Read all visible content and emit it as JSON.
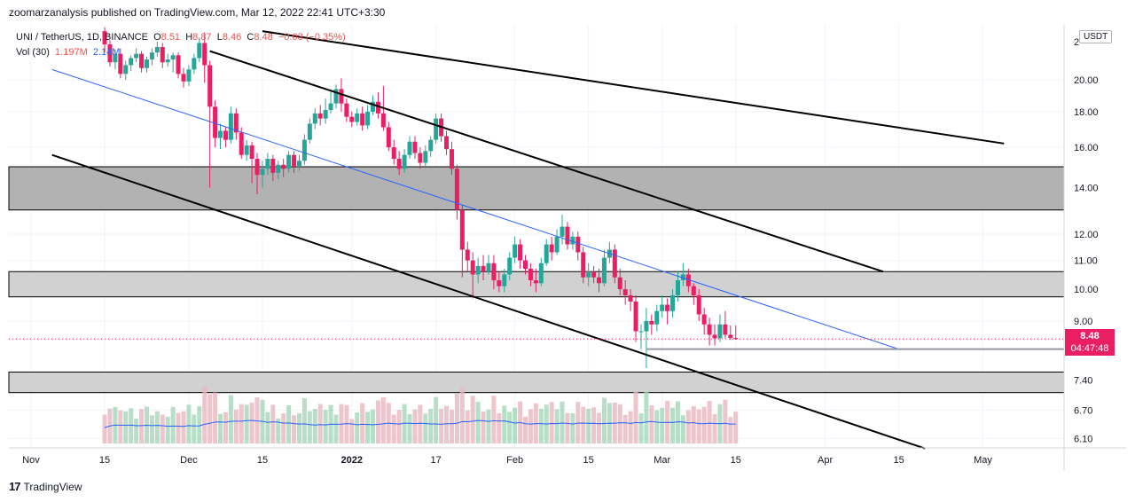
{
  "header": {
    "publisher_line": "zoomarzanalysis published on TradingView.com, Mar 12, 2022 22:41 UTC+3:30"
  },
  "legend": {
    "symbol": "UNI / TetherUS, 1D, BINANCE",
    "open_label": "O",
    "open": "8.51",
    "high_label": "H",
    "high": "8.87",
    "low_label": "L",
    "low": "8.46",
    "close_label": "C",
    "close": "8.48",
    "change": "−0.03 (−0.35%)",
    "vol_label": "Vol (30)",
    "vol_value": "1.197M",
    "vol_ma": "2.14M"
  },
  "currency": "USDT",
  "last_price": {
    "price": "8.48",
    "countdown": "04:47:48",
    "color": "#e91e63"
  },
  "footer": {
    "logo_text": "TradingView"
  },
  "chart_data": {
    "type": "candlestick",
    "symbol": "UNI/USDT",
    "interval": "1D",
    "scale": "log",
    "price_axis_ticks": [
      6.1,
      6.7,
      7.4,
      9.0,
      10.0,
      11.0,
      12.0,
      14.0,
      16.0,
      18.0,
      20.0
    ],
    "price_axis_top_label": "2",
    "time_axis_labels": [
      "Nov",
      "15",
      "Dec",
      "15",
      "2022",
      "17",
      "Feb",
      "15",
      "Mar",
      "15",
      "Apr",
      "15",
      "May"
    ],
    "time_axis_dates": [
      "2021-11-01",
      "2021-11-15",
      "2021-12-01",
      "2021-12-15",
      "2022-01-01",
      "2022-01-17",
      "2022-02-01",
      "2022-02-15",
      "2022-03-01",
      "2022-03-15",
      "2022-04-01",
      "2022-04-15",
      "2022-05-01"
    ],
    "candles": [
      [
        "2021-11-15",
        23.5,
        22.5,
        23.8,
        21.9
      ],
      [
        "2021-11-16",
        22.5,
        21.2,
        22.8,
        20.9
      ],
      [
        "2021-11-17",
        21.2,
        21.8,
        22.1,
        20.7
      ],
      [
        "2021-11-18",
        21.8,
        20.4,
        22.2,
        20.1
      ],
      [
        "2021-11-19",
        20.4,
        21.0,
        21.3,
        20.0
      ],
      [
        "2021-11-20",
        21.0,
        21.5,
        21.7,
        20.6
      ],
      [
        "2021-11-21",
        21.5,
        21.8,
        22.2,
        21.2
      ],
      [
        "2021-11-22",
        21.8,
        20.8,
        22.0,
        20.5
      ],
      [
        "2021-11-23",
        20.8,
        21.4,
        21.6,
        20.5
      ],
      [
        "2021-11-24",
        21.4,
        21.9,
        22.2,
        21.0
      ],
      [
        "2021-11-25",
        21.9,
        22.3,
        22.7,
        21.6
      ],
      [
        "2021-11-26",
        22.3,
        21.2,
        22.6,
        20.8
      ],
      [
        "2021-11-27",
        21.2,
        21.4,
        21.8,
        20.9
      ],
      [
        "2021-11-28",
        21.4,
        21.7,
        21.9,
        20.5
      ],
      [
        "2021-11-29",
        21.7,
        20.4,
        21.9,
        20.1
      ],
      [
        "2021-11-30",
        20.4,
        19.9,
        20.8,
        19.5
      ],
      [
        "2021-12-01",
        19.9,
        20.7,
        21.0,
        19.6
      ],
      [
        "2021-12-02",
        20.7,
        21.5,
        21.8,
        20.4
      ],
      [
        "2021-12-03",
        21.5,
        22.6,
        23.0,
        21.2
      ],
      [
        "2021-12-04",
        22.6,
        21.0,
        23.4,
        19.8
      ],
      [
        "2021-12-05",
        21.0,
        18.3,
        21.3,
        14.0
      ],
      [
        "2021-12-06",
        18.3,
        16.5,
        18.7,
        16.0
      ],
      [
        "2021-12-07",
        16.5,
        16.9,
        17.3,
        15.9
      ],
      [
        "2021-12-08",
        16.9,
        16.4,
        17.1,
        16.0
      ],
      [
        "2021-12-09",
        16.4,
        17.9,
        18.3,
        16.2
      ],
      [
        "2021-12-10",
        17.9,
        16.8,
        18.2,
        16.4
      ],
      [
        "2021-12-11",
        16.8,
        15.6,
        17.1,
        15.4
      ],
      [
        "2021-12-12",
        15.6,
        16.1,
        16.4,
        15.3
      ],
      [
        "2021-12-13",
        16.1,
        15.4,
        16.3,
        14.2
      ],
      [
        "2021-12-14",
        15.4,
        14.6,
        15.7,
        13.7
      ],
      [
        "2021-12-15",
        14.6,
        14.9,
        15.3,
        14.0
      ],
      [
        "2021-12-16",
        14.9,
        15.4,
        15.7,
        14.6
      ],
      [
        "2021-12-17",
        15.4,
        14.7,
        15.6,
        14.3
      ],
      [
        "2021-12-18",
        14.7,
        15.1,
        15.3,
        14.4
      ],
      [
        "2021-12-19",
        15.1,
        14.9,
        15.4,
        14.5
      ],
      [
        "2021-12-20",
        14.9,
        15.6,
        15.8,
        14.7
      ],
      [
        "2021-12-21",
        15.6,
        15.0,
        15.8,
        14.7
      ],
      [
        "2021-12-22",
        15.0,
        15.3,
        15.6,
        14.8
      ],
      [
        "2021-12-23",
        15.3,
        16.4,
        16.7,
        15.1
      ],
      [
        "2021-12-24",
        16.4,
        17.3,
        17.6,
        16.2
      ],
      [
        "2021-12-25",
        17.3,
        17.9,
        18.2,
        17.0
      ],
      [
        "2021-12-26",
        17.9,
        17.6,
        18.4,
        17.2
      ],
      [
        "2021-12-27",
        17.6,
        18.1,
        18.8,
        17.3
      ],
      [
        "2021-12-28",
        18.1,
        18.5,
        19.4,
        17.9
      ],
      [
        "2021-12-29",
        18.5,
        19.4,
        19.7,
        18.2
      ],
      [
        "2021-12-30",
        19.4,
        18.5,
        20.1,
        18.0
      ],
      [
        "2021-12-31",
        18.5,
        17.7,
        18.8,
        17.4
      ],
      [
        "2022-01-01",
        17.7,
        17.4,
        18.0,
        17.1
      ],
      [
        "2022-01-02",
        17.4,
        17.9,
        18.2,
        17.2
      ],
      [
        "2022-01-03",
        17.9,
        17.2,
        18.3,
        16.9
      ],
      [
        "2022-01-04",
        17.2,
        18.0,
        18.4,
        17.0
      ],
      [
        "2022-01-05",
        18.0,
        18.6,
        19.0,
        17.8
      ],
      [
        "2022-01-06",
        18.6,
        17.9,
        19.2,
        17.6
      ],
      [
        "2022-01-07",
        17.9,
        17.1,
        19.6,
        16.9
      ],
      [
        "2022-01-08",
        17.1,
        16.0,
        17.4,
        15.8
      ],
      [
        "2022-01-09",
        16.0,
        15.4,
        16.4,
        15.1
      ],
      [
        "2022-01-10",
        15.4,
        14.9,
        15.8,
        14.6
      ],
      [
        "2022-01-11",
        14.9,
        15.6,
        15.9,
        14.7
      ],
      [
        "2022-01-12",
        15.6,
        16.3,
        16.6,
        15.4
      ],
      [
        "2022-01-13",
        16.3,
        15.7,
        16.6,
        15.4
      ],
      [
        "2022-01-14",
        15.7,
        15.2,
        16.0,
        14.9
      ],
      [
        "2022-01-15",
        15.2,
        15.8,
        16.1,
        15.0
      ],
      [
        "2022-01-16",
        15.8,
        16.4,
        16.6,
        15.5
      ],
      [
        "2022-01-17",
        16.4,
        17.6,
        17.9,
        16.2
      ],
      [
        "2022-01-18",
        17.6,
        16.6,
        17.9,
        16.3
      ],
      [
        "2022-01-19",
        16.6,
        15.9,
        16.9,
        15.6
      ],
      [
        "2022-01-20",
        15.9,
        14.9,
        16.3,
        14.6
      ],
      [
        "2022-01-21",
        14.9,
        13.0,
        15.1,
        12.6
      ],
      [
        "2022-01-22",
        13.0,
        11.4,
        13.2,
        10.4
      ],
      [
        "2022-01-23",
        11.4,
        11.0,
        11.7,
        10.6
      ],
      [
        "2022-01-24",
        11.0,
        10.5,
        11.3,
        9.7
      ],
      [
        "2022-01-25",
        10.5,
        10.8,
        11.1,
        10.2
      ],
      [
        "2022-01-26",
        10.8,
        10.6,
        11.2,
        10.3
      ],
      [
        "2022-01-27",
        10.6,
        10.9,
        11.2,
        10.5
      ],
      [
        "2022-01-28",
        10.9,
        10.3,
        11.2,
        10.0
      ],
      [
        "2022-01-29",
        10.3,
        10.1,
        10.6,
        9.9
      ],
      [
        "2022-01-30",
        10.1,
        10.5,
        10.7,
        9.9
      ],
      [
        "2022-01-31",
        10.5,
        11.1,
        11.3,
        10.3
      ],
      [
        "2022-02-01",
        11.1,
        11.6,
        11.9,
        10.9
      ],
      [
        "2022-02-02",
        11.6,
        11.0,
        11.8,
        10.7
      ],
      [
        "2022-02-03",
        11.0,
        10.7,
        11.2,
        10.5
      ],
      [
        "2022-02-04",
        10.7,
        10.3,
        10.9,
        10.1
      ],
      [
        "2022-02-05",
        10.3,
        10.2,
        10.7,
        9.9
      ],
      [
        "2022-02-06",
        10.2,
        10.9,
        11.1,
        10.1
      ],
      [
        "2022-02-07",
        10.9,
        11.6,
        11.8,
        10.8
      ],
      [
        "2022-02-08",
        11.6,
        11.3,
        11.9,
        11.0
      ],
      [
        "2022-02-09",
        11.3,
        11.9,
        12.2,
        11.2
      ],
      [
        "2022-02-10",
        11.9,
        12.3,
        12.8,
        11.6
      ],
      [
        "2022-02-11",
        12.3,
        11.6,
        12.5,
        11.4
      ],
      [
        "2022-02-12",
        11.6,
        11.9,
        12.1,
        11.4
      ],
      [
        "2022-02-13",
        11.9,
        11.3,
        12.1,
        11.0
      ],
      [
        "2022-02-14",
        11.3,
        10.4,
        11.5,
        10.2
      ],
      [
        "2022-02-15",
        10.4,
        10.6,
        10.9,
        10.1
      ],
      [
        "2022-02-16",
        10.6,
        10.4,
        10.8,
        10.2
      ],
      [
        "2022-02-17",
        10.4,
        10.2,
        10.7,
        9.9
      ],
      [
        "2022-02-18",
        10.2,
        11.1,
        11.4,
        10.1
      ],
      [
        "2022-02-19",
        11.1,
        11.4,
        11.7,
        10.9
      ],
      [
        "2022-02-20",
        11.4,
        10.4,
        11.6,
        10.2
      ],
      [
        "2022-02-21",
        10.4,
        10.0,
        10.7,
        9.8
      ],
      [
        "2022-02-22",
        10.0,
        9.8,
        10.3,
        9.5
      ],
      [
        "2022-02-23",
        9.8,
        9.6,
        10.0,
        9.3
      ],
      [
        "2022-02-24",
        9.6,
        8.7,
        9.8,
        8.4
      ],
      [
        "2022-02-25",
        8.7,
        8.7,
        8.9,
        8.2
      ],
      [
        "2022-02-26",
        8.7,
        9.0,
        9.4,
        7.7
      ],
      [
        "2022-02-27",
        9.0,
        8.9,
        9.2,
        8.6
      ],
      [
        "2022-02-28",
        8.9,
        9.3,
        9.5,
        8.7
      ],
      [
        "2022-03-01",
        9.3,
        9.5,
        9.8,
        9.1
      ],
      [
        "2022-03-02",
        9.5,
        9.3,
        9.7,
        8.9
      ],
      [
        "2022-03-03",
        9.3,
        9.8,
        10.0,
        9.1
      ],
      [
        "2022-03-04",
        9.8,
        10.3,
        10.6,
        9.6
      ],
      [
        "2022-03-05",
        10.3,
        10.5,
        10.9,
        10.1
      ],
      [
        "2022-03-06",
        10.5,
        10.1,
        10.7,
        9.9
      ],
      [
        "2022-03-07",
        10.1,
        9.8,
        10.2,
        9.5
      ],
      [
        "2022-03-08",
        9.8,
        9.2,
        10.0,
        9.0
      ],
      [
        "2022-03-09",
        9.2,
        8.9,
        9.4,
        8.6
      ],
      [
        "2022-03-10",
        8.9,
        8.6,
        9.1,
        8.3
      ],
      [
        "2022-03-11",
        8.6,
        8.5,
        8.9,
        8.3
      ],
      [
        "2022-03-12",
        8.5,
        8.9,
        9.2,
        8.4
      ],
      [
        "2022-03-13",
        8.9,
        8.6,
        9.3,
        8.5
      ],
      [
        "2022-03-14",
        8.6,
        8.51,
        8.87,
        8.46
      ],
      [
        "2022-03-15",
        8.51,
        8.48,
        8.87,
        8.46
      ]
    ],
    "volume_note": "volume histogram beneath price, per-candle",
    "horizontal_zones": [
      {
        "low": 13.0,
        "high": 15.0,
        "color": "#b2b2b2"
      },
      {
        "low": 9.75,
        "high": 10.6,
        "color": "#d1d1d1"
      },
      {
        "low": 7.1,
        "high": 7.6,
        "color": "#d1d1d1"
      }
    ],
    "trendlines": [
      {
        "x": [
          "2021-12-05",
          "2022-04-12"
        ],
        "y": [
          22.0,
          10.6
        ],
        "color": "#000000"
      },
      {
        "x": [
          "2021-11-05",
          "2022-04-20"
        ],
        "y": [
          15.6,
          5.9
        ],
        "color": "#000000"
      },
      {
        "x": [
          "2021-12-15",
          "2022-05-05"
        ],
        "y": [
          23.5,
          16.2
        ],
        "color": "#000000"
      },
      {
        "x": [
          "2021-11-05",
          "2022-04-15"
        ],
        "y": [
          20.7,
          8.2
        ],
        "color": "#2962ff"
      }
    ],
    "last_price_line": 8.48,
    "support_line": 8.2,
    "colors": {
      "up": "#26a69a",
      "down": "#e91e63",
      "grid": "#f0f3fa",
      "volume_ma": "#2962ff"
    }
  }
}
